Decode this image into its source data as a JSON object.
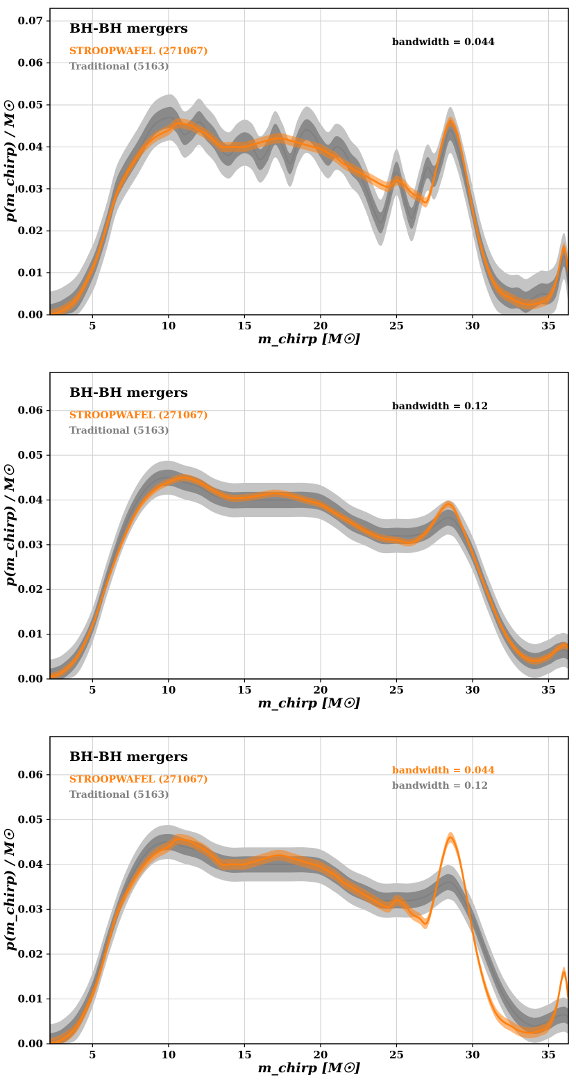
{
  "colors": {
    "stroopwafel": "#ff7f0e",
    "traditional": "#808080",
    "outer_band": "#c4c4c4",
    "inner_band": "#8a8a8a",
    "grid": "#cfcfcf"
  },
  "chart_data": [
    {
      "type": "line",
      "title": "BH-BH mergers",
      "xlabel": "m_chirp [M☉]",
      "ylabel": "p(m_chirp) / M☉",
      "xlim": [
        2.2,
        36.3
      ],
      "ylim": [
        0,
        0.073
      ],
      "xticks": [
        5,
        10,
        15,
        20,
        25,
        30,
        35
      ],
      "yticks": [
        "0.00",
        "0.01",
        "0.02",
        "0.03",
        "0.04",
        "0.05",
        "0.06",
        "0.07"
      ],
      "legend": [
        "STROOPWAFEL (271067)",
        "Traditional (5163)"
      ],
      "annotations": [
        "bandwidth = 0.044"
      ],
      "series": [
        {
          "name": "STROOPWAFEL (271067)",
          "band_halfwidth": 0.0012,
          "x": [
            2.2,
            3,
            4,
            5,
            5.5,
            6,
            6.5,
            7,
            8,
            9,
            10,
            10.5,
            11,
            11.5,
            12,
            12.5,
            13,
            13.5,
            14,
            14.5,
            15,
            15.5,
            16,
            16.5,
            17,
            17.5,
            18,
            18.5,
            19,
            19.5,
            20,
            20.5,
            21,
            21.5,
            22,
            22.5,
            23,
            23.5,
            24,
            24.5,
            25,
            25.5,
            26,
            26.5,
            27,
            27.5,
            28,
            28.5,
            29,
            29.5,
            30,
            30.5,
            31,
            31.5,
            32,
            32.5,
            33,
            33.5,
            34,
            34.5,
            35,
            35.5,
            36,
            36.3
          ],
          "y": [
            0.0,
            0.001,
            0.004,
            0.011,
            0.016,
            0.022,
            0.028,
            0.032,
            0.038,
            0.042,
            0.044,
            0.0455,
            0.0455,
            0.045,
            0.044,
            0.043,
            0.0415,
            0.04,
            0.04,
            0.04,
            0.04,
            0.0405,
            0.041,
            0.0415,
            0.042,
            0.042,
            0.0415,
            0.041,
            0.0405,
            0.04,
            0.0395,
            0.0385,
            0.0375,
            0.036,
            0.035,
            0.034,
            0.033,
            0.032,
            0.031,
            0.0305,
            0.032,
            0.031,
            0.029,
            0.028,
            0.027,
            0.033,
            0.041,
            0.046,
            0.043,
            0.035,
            0.025,
            0.017,
            0.011,
            0.007,
            0.005,
            0.004,
            0.003,
            0.0025,
            0.0025,
            0.003,
            0.004,
            0.008,
            0.016,
            0.01
          ]
        },
        {
          "name": "Traditional (5163)",
          "band_inner": 0.0025,
          "band_outer": 0.0055,
          "x": [
            2.2,
            3,
            4,
            5,
            5.5,
            6,
            6.5,
            7,
            8,
            9,
            10,
            10.5,
            11,
            11.5,
            12,
            12.5,
            13,
            13.5,
            14,
            14.5,
            15,
            15.5,
            16,
            16.5,
            17,
            17.5,
            18,
            18.5,
            19,
            19.5,
            20,
            20.5,
            21,
            21.5,
            22,
            22.5,
            23,
            23.5,
            24,
            24.5,
            25,
            25.5,
            26,
            26.5,
            27,
            27.5,
            28,
            28.5,
            29,
            29.5,
            30,
            30.5,
            31,
            31.5,
            32,
            32.5,
            33,
            33.5,
            34,
            34.5,
            35,
            35.5,
            36,
            36.3
          ],
          "y": [
            0.0,
            0.001,
            0.004,
            0.011,
            0.016,
            0.022,
            0.029,
            0.033,
            0.039,
            0.045,
            0.047,
            0.046,
            0.043,
            0.044,
            0.046,
            0.044,
            0.042,
            0.039,
            0.038,
            0.04,
            0.041,
            0.04,
            0.037,
            0.039,
            0.043,
            0.04,
            0.036,
            0.041,
            0.044,
            0.043,
            0.04,
            0.038,
            0.04,
            0.039,
            0.036,
            0.034,
            0.03,
            0.025,
            0.022,
            0.028,
            0.034,
            0.028,
            0.023,
            0.029,
            0.035,
            0.033,
            0.038,
            0.044,
            0.04,
            0.033,
            0.025,
            0.017,
            0.011,
            0.007,
            0.005,
            0.004,
            0.004,
            0.003,
            0.004,
            0.005,
            0.005,
            0.007,
            0.014,
            0.008
          ]
        }
      ]
    },
    {
      "type": "line",
      "title": "BH-BH mergers",
      "xlabel": "m_chirp [M☉]",
      "ylabel": "p(m_chirp) / M☉",
      "xlim": [
        2.2,
        36.3
      ],
      "ylim": [
        0,
        0.0685
      ],
      "xticks": [
        5,
        10,
        15,
        20,
        25,
        30,
        35
      ],
      "yticks": [
        "0.00",
        "0.01",
        "0.02",
        "0.03",
        "0.04",
        "0.05",
        "0.06"
      ],
      "legend": [
        "STROOPWAFEL (271067)",
        "Traditional (5163)"
      ],
      "annotations": [
        "bandwidth = 0.12"
      ],
      "series": [
        {
          "name": "STROOPWAFEL (271067)",
          "band_halfwidth": 0.0008,
          "x": [
            2.2,
            3,
            4,
            5,
            6,
            7,
            8,
            9,
            10,
            11,
            12,
            13,
            14,
            15,
            16,
            17,
            18,
            19,
            20,
            21,
            22,
            23,
            24,
            25,
            26,
            27,
            28,
            28.5,
            29,
            30,
            31,
            32,
            33,
            34,
            35,
            35.5,
            36,
            36.3
          ],
          "y": [
            0.0005,
            0.0015,
            0.005,
            0.012,
            0.022,
            0.031,
            0.038,
            0.042,
            0.044,
            0.045,
            0.044,
            0.042,
            0.0405,
            0.0405,
            0.041,
            0.0415,
            0.041,
            0.04,
            0.039,
            0.037,
            0.035,
            0.033,
            0.0315,
            0.031,
            0.0305,
            0.033,
            0.038,
            0.039,
            0.0365,
            0.028,
            0.019,
            0.011,
            0.006,
            0.004,
            0.005,
            0.0065,
            0.0075,
            0.007
          ]
        },
        {
          "name": "Traditional (5163)",
          "band_inner": 0.0018,
          "band_outer": 0.0038,
          "x": [
            2.2,
            3,
            4,
            5,
            6,
            7,
            8,
            9,
            10,
            11,
            12,
            13,
            14,
            15,
            16,
            17,
            18,
            19,
            20,
            21,
            22,
            23,
            24,
            25,
            26,
            27,
            28,
            28.5,
            29,
            30,
            31,
            32,
            33,
            34,
            35,
            35.5,
            36,
            36.3
          ],
          "y": [
            0.0005,
            0.0015,
            0.005,
            0.012,
            0.023,
            0.033,
            0.04,
            0.044,
            0.045,
            0.044,
            0.043,
            0.041,
            0.04,
            0.04,
            0.04,
            0.04,
            0.04,
            0.04,
            0.0395,
            0.0375,
            0.035,
            0.0335,
            0.032,
            0.032,
            0.032,
            0.033,
            0.0355,
            0.036,
            0.0345,
            0.028,
            0.019,
            0.011,
            0.006,
            0.004,
            0.005,
            0.006,
            0.0065,
            0.006
          ]
        }
      ]
    },
    {
      "type": "line",
      "title": "BH-BH mergers",
      "xlabel": "m_chirp [M☉]",
      "ylabel": "p(m_chirp) / M☉",
      "xlim": [
        2.2,
        36.3
      ],
      "ylim": [
        0,
        0.0685
      ],
      "xticks": [
        5,
        10,
        15,
        20,
        25,
        30,
        35
      ],
      "yticks": [
        "0.00",
        "0.01",
        "0.02",
        "0.03",
        "0.04",
        "0.05",
        "0.06"
      ],
      "legend": [
        "STROOPWAFEL (271067)",
        "Traditional (5163)"
      ],
      "annotations": [
        "bandwidth = 0.044",
        "bandwidth = 0.12"
      ],
      "series": [
        {
          "name": "STROOPWAFEL (271067)",
          "band_halfwidth": 0.0012,
          "x": [
            2.2,
            3,
            4,
            5,
            5.5,
            6,
            6.5,
            7,
            8,
            9,
            10,
            10.5,
            11,
            11.5,
            12,
            12.5,
            13,
            13.5,
            14,
            14.5,
            15,
            15.5,
            16,
            16.5,
            17,
            17.5,
            18,
            18.5,
            19,
            19.5,
            20,
            20.5,
            21,
            21.5,
            22,
            22.5,
            23,
            23.5,
            24,
            24.5,
            25,
            25.5,
            26,
            26.5,
            27,
            27.5,
            28,
            28.5,
            29,
            29.5,
            30,
            30.5,
            31,
            31.5,
            32,
            32.5,
            33,
            33.5,
            34,
            34.5,
            35,
            35.5,
            36,
            36.3
          ],
          "y": [
            0.0,
            0.001,
            0.004,
            0.011,
            0.016,
            0.022,
            0.028,
            0.032,
            0.038,
            0.042,
            0.044,
            0.0455,
            0.0455,
            0.045,
            0.044,
            0.043,
            0.0415,
            0.04,
            0.04,
            0.04,
            0.04,
            0.0405,
            0.041,
            0.0415,
            0.042,
            0.042,
            0.0415,
            0.041,
            0.0405,
            0.04,
            0.0395,
            0.0385,
            0.0375,
            0.036,
            0.035,
            0.034,
            0.033,
            0.032,
            0.031,
            0.0305,
            0.032,
            0.031,
            0.029,
            0.028,
            0.027,
            0.033,
            0.041,
            0.046,
            0.043,
            0.035,
            0.025,
            0.017,
            0.011,
            0.007,
            0.005,
            0.004,
            0.003,
            0.0025,
            0.0025,
            0.003,
            0.004,
            0.008,
            0.016,
            0.01
          ]
        },
        {
          "name": "Traditional (5163)",
          "band_inner": 0.0018,
          "band_outer": 0.0038,
          "x": [
            2.2,
            3,
            4,
            5,
            6,
            7,
            8,
            9,
            10,
            11,
            12,
            13,
            14,
            15,
            16,
            17,
            18,
            19,
            20,
            21,
            22,
            23,
            24,
            25,
            26,
            27,
            28,
            28.5,
            29,
            30,
            31,
            32,
            33,
            34,
            35,
            35.5,
            36,
            36.3
          ],
          "y": [
            0.0005,
            0.0015,
            0.005,
            0.012,
            0.023,
            0.033,
            0.04,
            0.044,
            0.045,
            0.044,
            0.043,
            0.041,
            0.04,
            0.04,
            0.04,
            0.04,
            0.04,
            0.04,
            0.0395,
            0.0375,
            0.035,
            0.0335,
            0.032,
            0.032,
            0.032,
            0.033,
            0.0355,
            0.036,
            0.0345,
            0.028,
            0.019,
            0.011,
            0.006,
            0.004,
            0.005,
            0.006,
            0.0065,
            0.006
          ]
        }
      ]
    }
  ]
}
